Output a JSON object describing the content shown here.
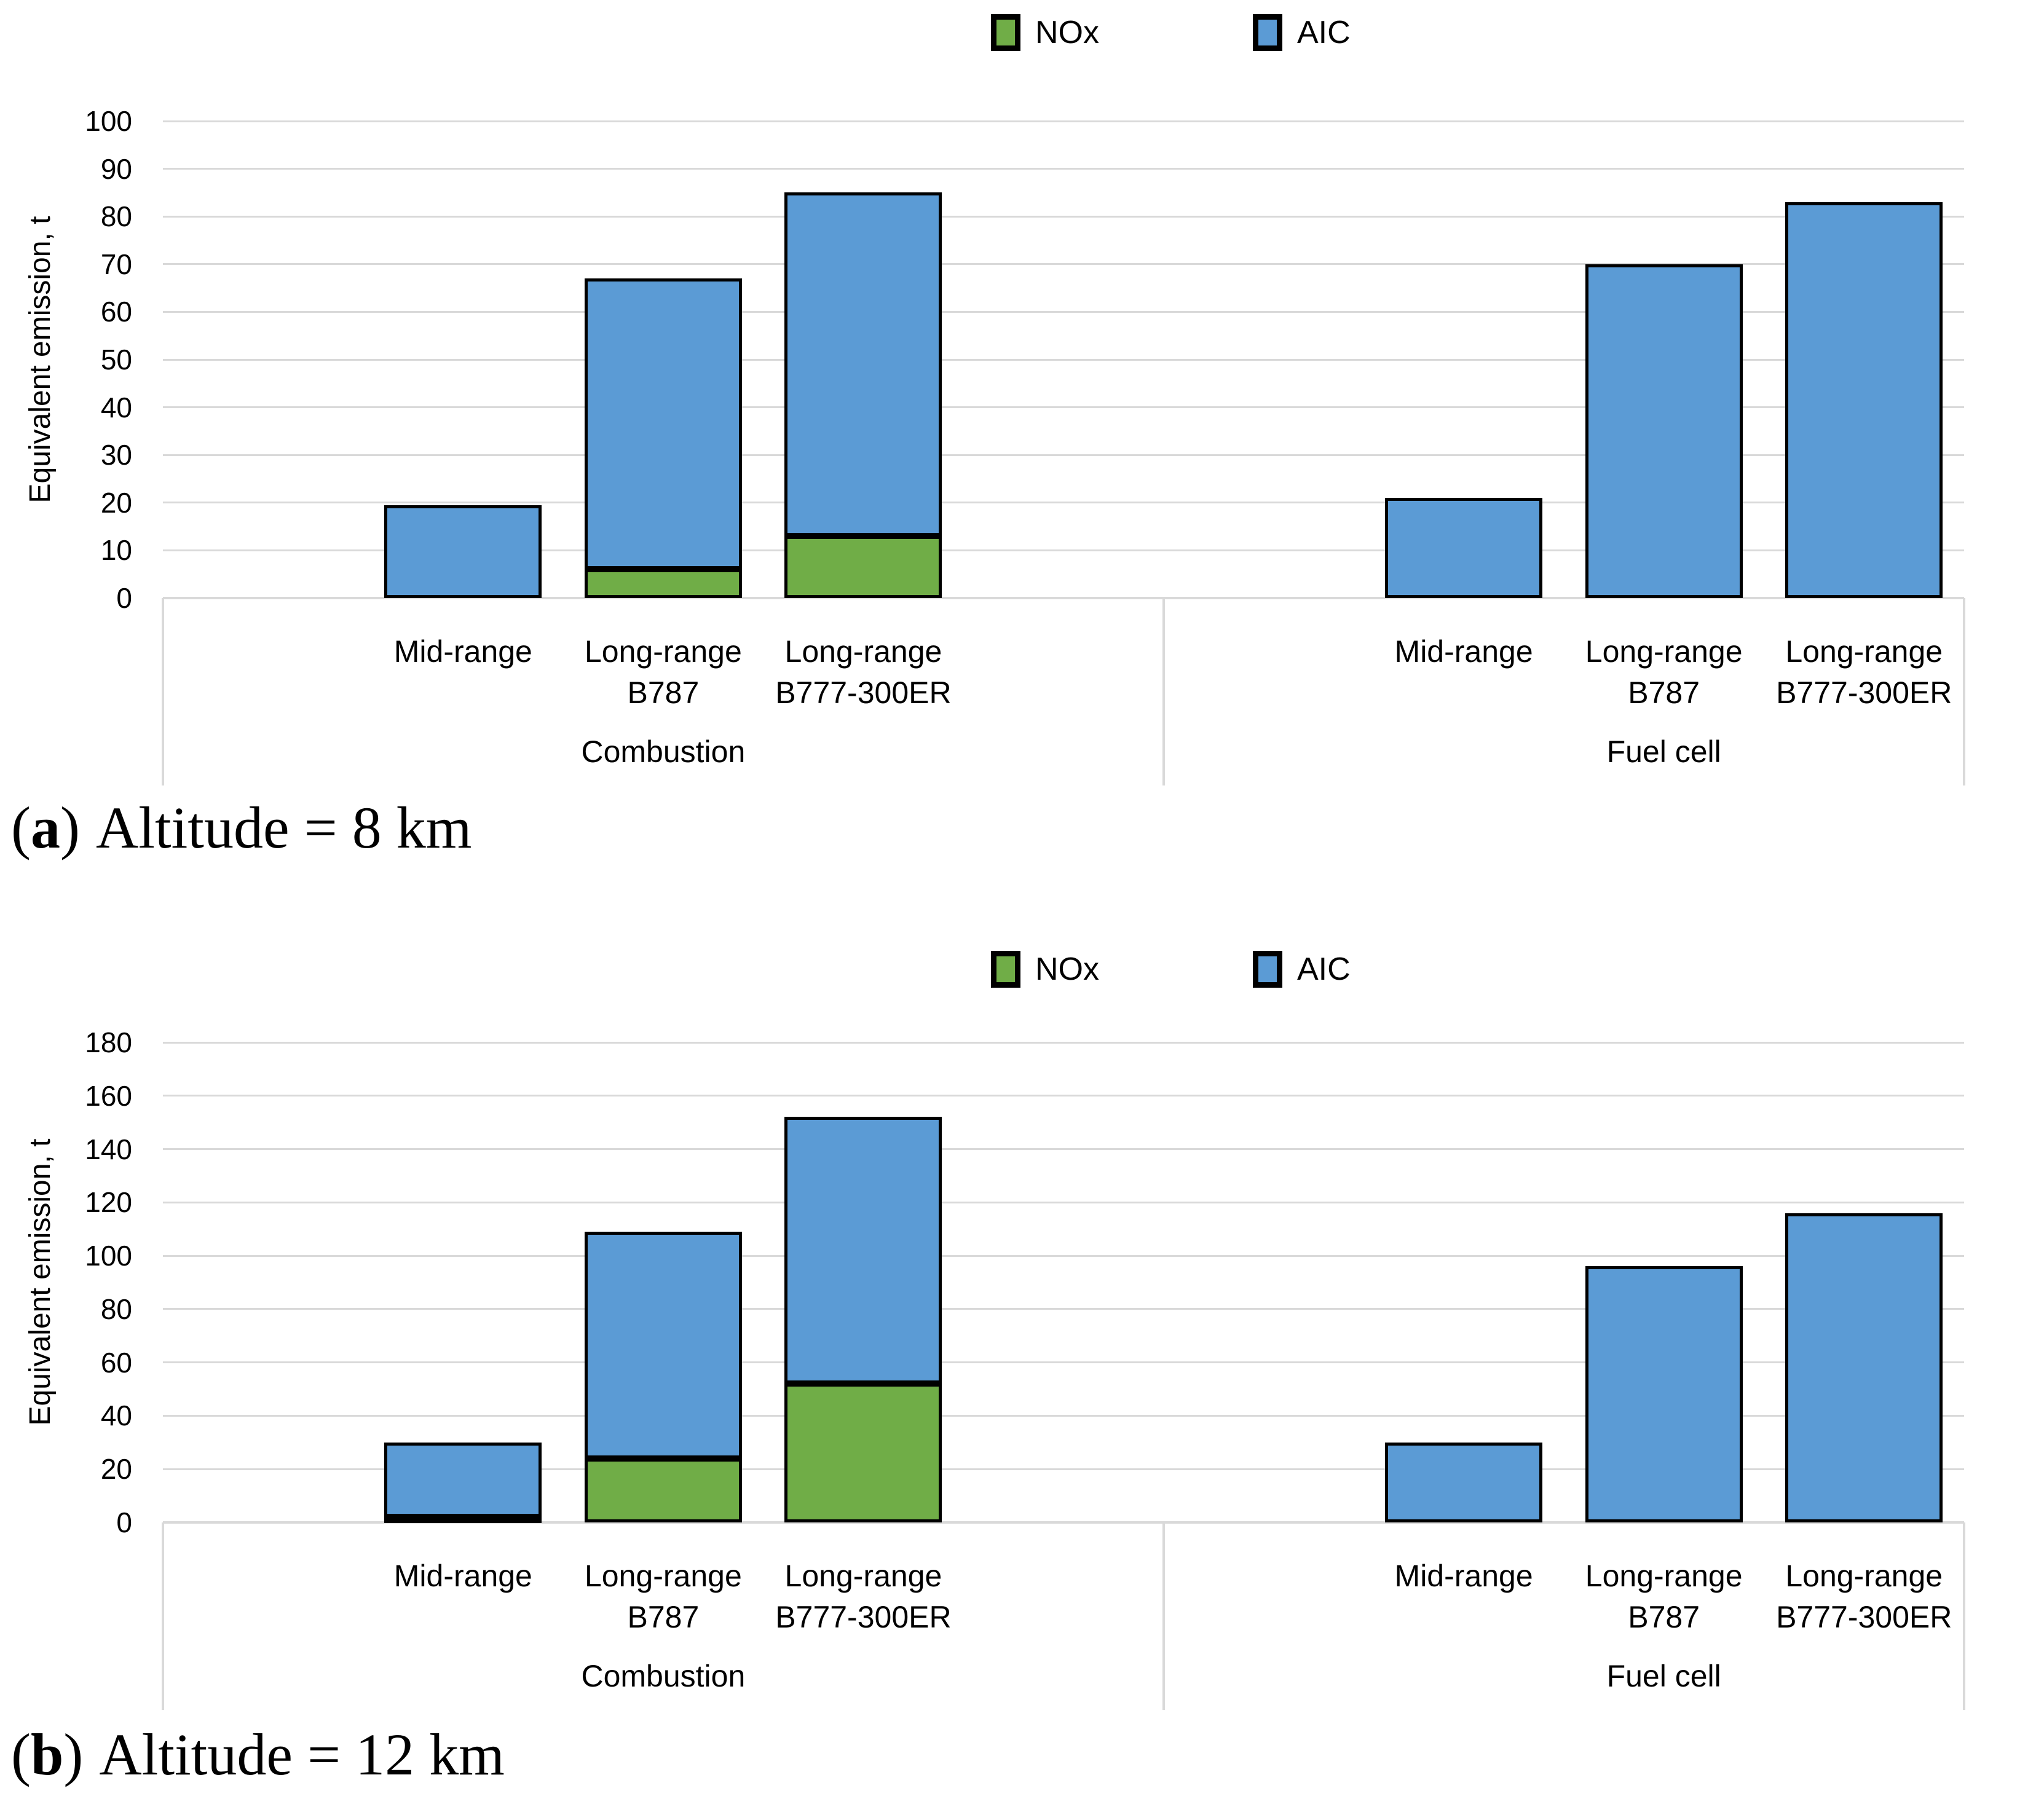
{
  "page": {
    "background": "#FFFFFF"
  },
  "colors": {
    "nox_green": "#70AD47",
    "aic_blue": "#5B9BD5",
    "gridline_gray": "#D9D9D9",
    "bar_border": "#000000",
    "text": "#000000"
  },
  "legend": {
    "items": [
      {
        "label": "NOx",
        "color": "#70AD47"
      },
      {
        "label": "AIC",
        "color": "#5B9BD5"
      }
    ]
  },
  "chart_data": [
    {
      "type": "bar",
      "stacked": true,
      "title": "",
      "caption": {
        "open": "(",
        "letter": "a",
        "close": ")",
        "text": "Altitude = 8 km"
      },
      "ylabel": "Equivalent emission, t",
      "ylim": [
        0,
        100
      ],
      "ytick_step": 10,
      "grid": true,
      "legend_position": "top-center",
      "series_names": [
        "NOx",
        "AIC"
      ],
      "groups": [
        {
          "label": "Combustion",
          "categories": [
            [
              "Mid-range"
            ],
            [
              "Long-range",
              "B787"
            ],
            [
              "Long-range",
              "B777-300ER"
            ]
          ],
          "series": [
            {
              "name": "NOx",
              "color": "#70AD47",
              "values": [
                0,
                6,
                13
              ]
            },
            {
              "name": "AIC",
              "color": "#5B9BD5",
              "values": [
                19.5,
                61,
                72
              ]
            }
          ],
          "totals": [
            19.5,
            67,
            85
          ]
        },
        {
          "label": "Fuel cell",
          "categories": [
            [
              "Mid-range"
            ],
            [
              "Long-range",
              "B787"
            ],
            [
              "Long-range",
              "B777-300ER"
            ]
          ],
          "series": [
            {
              "name": "NOx",
              "color": "#70AD47",
              "values": [
                0,
                0,
                0
              ]
            },
            {
              "name": "AIC",
              "color": "#5B9BD5",
              "values": [
                21,
                70,
                83
              ]
            }
          ],
          "totals": [
            21,
            70,
            83
          ]
        }
      ]
    },
    {
      "type": "bar",
      "stacked": true,
      "title": "",
      "caption": {
        "open": "(",
        "letter": "b",
        "close": ")",
        "text": "Altitude = 12 km"
      },
      "ylabel": "Equivalent emission, t",
      "ylim": [
        0,
        180
      ],
      "ytick_step": 20,
      "grid": true,
      "legend_position": "top-center",
      "series_names": [
        "NOx",
        "AIC"
      ],
      "groups": [
        {
          "label": "Combustion",
          "categories": [
            [
              "Mid-range"
            ],
            [
              "Long-range",
              "B787"
            ],
            [
              "Long-range",
              "B777-300ER"
            ]
          ],
          "series": [
            {
              "name": "NOx",
              "color": "#70AD47",
              "values": [
                2,
                24,
                52
              ]
            },
            {
              "name": "AIC",
              "color": "#5B9BD5",
              "values": [
                28,
                85,
                100
              ]
            }
          ],
          "totals": [
            30,
            109,
            152
          ]
        },
        {
          "label": "Fuel cell",
          "categories": [
            [
              "Mid-range"
            ],
            [
              "Long-range",
              "B787"
            ],
            [
              "Long-range",
              "B777-300ER"
            ]
          ],
          "series": [
            {
              "name": "NOx",
              "color": "#70AD47",
              "values": [
                0,
                0,
                0
              ]
            },
            {
              "name": "AIC",
              "color": "#5B9BD5",
              "values": [
                30,
                96,
                116
              ]
            }
          ],
          "totals": [
            30,
            96,
            116
          ]
        }
      ]
    }
  ]
}
